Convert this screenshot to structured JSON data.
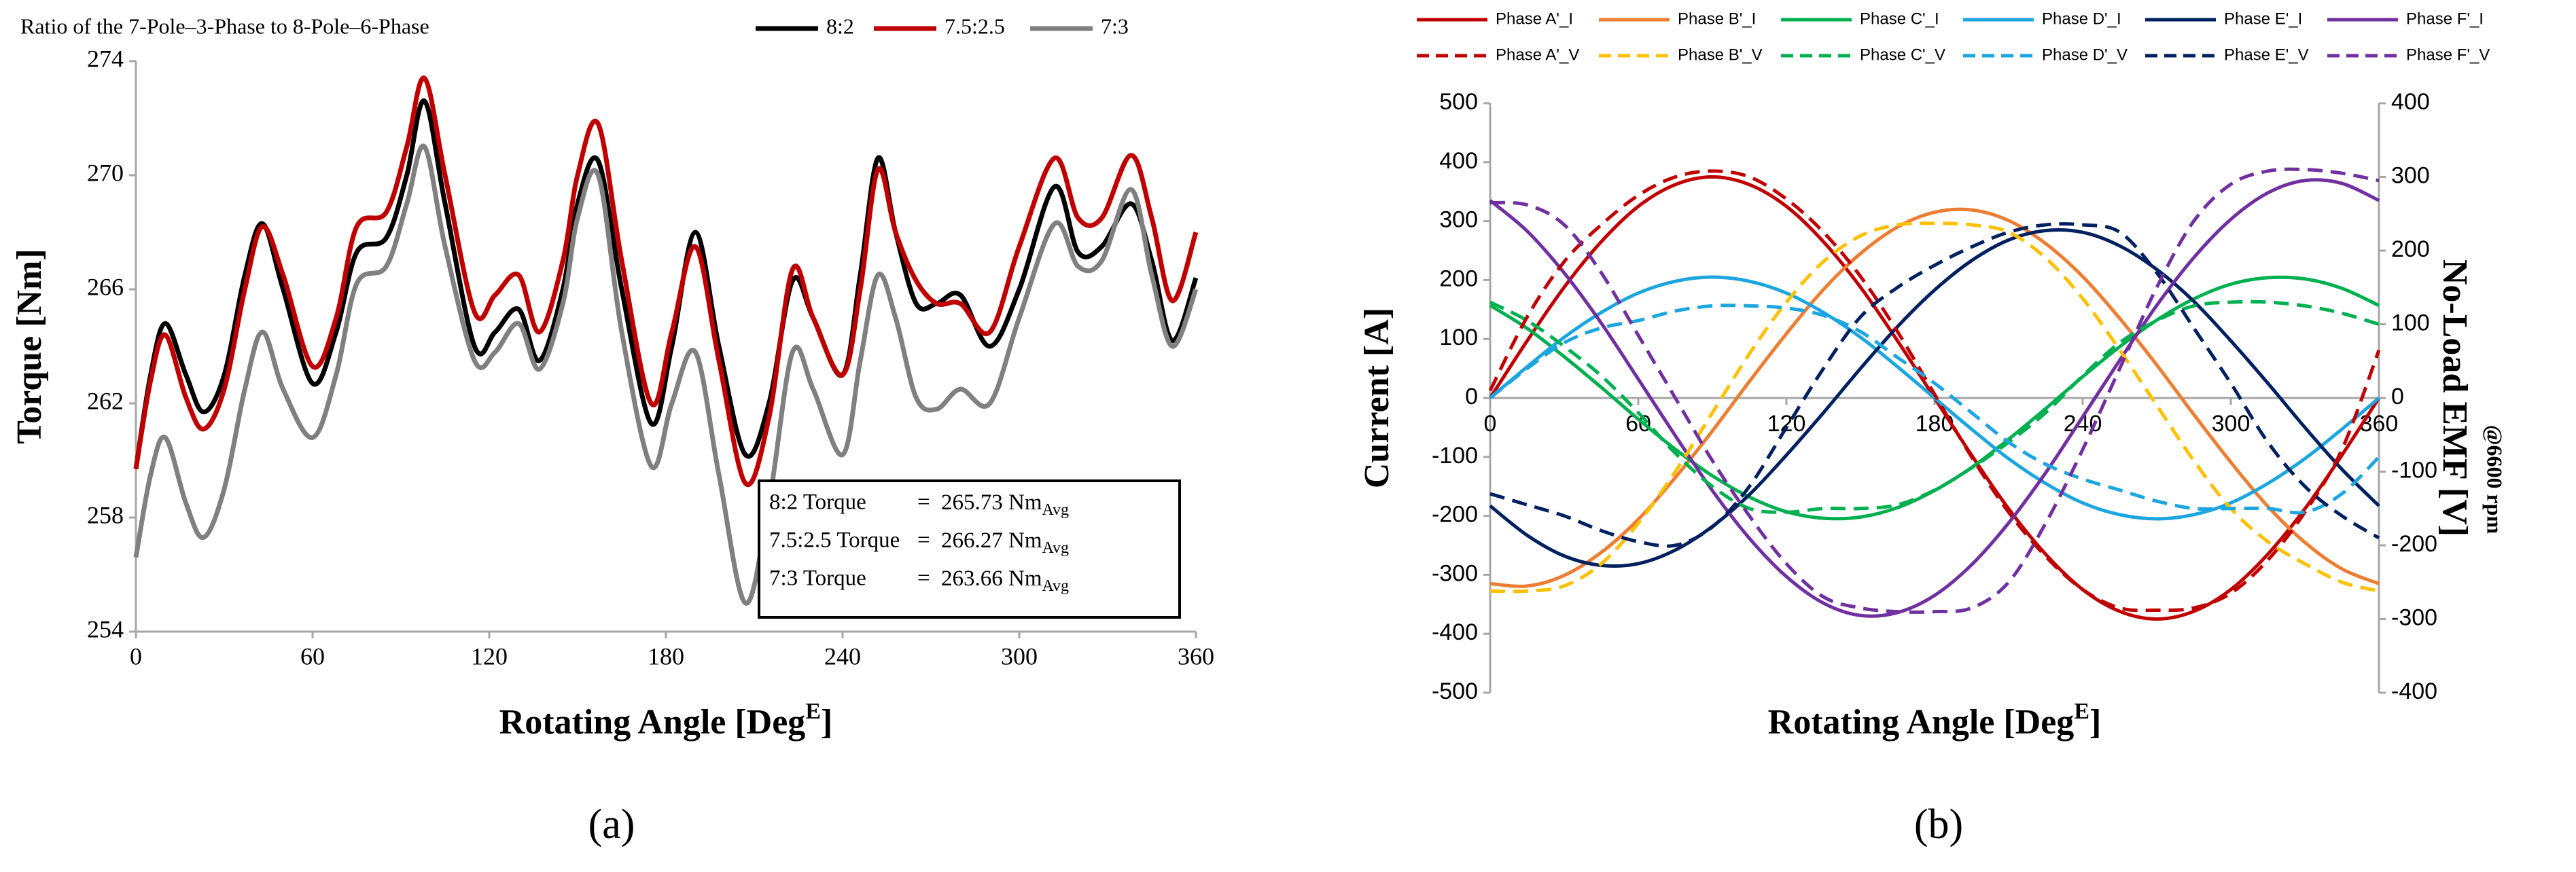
{
  "chart_data": [
    {
      "type": "line",
      "panel_label": "(a)",
      "title": "Ratio of the 7-Pole–3-Phase to 8-Pole–6-Phase",
      "ylabel": "Torque [Nm]",
      "xlabel_parts": [
        "Rotating Angle [Deg",
        "E",
        "]"
      ],
      "xlim": [
        0,
        360
      ],
      "xticks": [
        0,
        60,
        120,
        180,
        240,
        300,
        360
      ],
      "ylim": [
        254,
        274
      ],
      "yticks": [
        254,
        258,
        262,
        266,
        270,
        274
      ],
      "x": [
        0,
        5,
        10,
        17,
        23,
        30,
        37,
        43,
        50,
        60,
        68,
        75,
        85,
        92,
        98,
        105,
        115,
        122,
        130,
        137,
        145,
        150,
        157,
        165,
        175,
        182,
        190,
        198,
        207,
        215,
        223,
        230,
        240,
        246,
        252,
        258,
        265,
        272,
        280,
        290,
        300,
        312,
        320,
        328,
        338,
        345,
        352,
        360
      ],
      "series": [
        {
          "name": "8:2",
          "color": "#000000",
          "values": [
            259.7,
            263,
            264.8,
            263,
            261.7,
            263,
            266.5,
            268.3,
            266,
            262.7,
            264.5,
            267.3,
            267.8,
            270,
            272.6,
            269,
            264,
            264.5,
            265.3,
            263.5,
            266,
            269,
            270.5,
            266,
            261.3,
            264,
            268,
            264,
            260.2,
            262,
            266.3,
            265,
            263,
            266.5,
            270.6,
            268,
            265.5,
            265.5,
            265.8,
            264,
            266,
            269.6,
            267.3,
            267.5,
            269,
            267,
            264.2,
            266.4
          ]
        },
        {
          "name": "7.5:2.5",
          "color": "#c00000",
          "values": [
            259.7,
            262.8,
            264.4,
            262.2,
            261.1,
            262.5,
            266,
            268.2,
            266.5,
            263.3,
            265,
            268.2,
            268.7,
            271,
            273.4,
            270,
            265.2,
            265.8,
            266.5,
            264.5,
            267,
            270,
            271.8,
            267,
            262,
            264.5,
            267.5,
            263.5,
            259.2,
            261.5,
            266.7,
            265,
            263,
            266,
            270.2,
            268,
            266.3,
            265.5,
            265.5,
            264.5,
            267.5,
            270.6,
            268.5,
            268.5,
            270.7,
            268.5,
            265.6,
            268
          ]
        },
        {
          "name": "7:3",
          "color": "#808080",
          "values": [
            256.6,
            259.5,
            260.8,
            258.5,
            257.3,
            259,
            262.5,
            264.5,
            262.5,
            260.8,
            263,
            266.2,
            266.8,
            269,
            271,
            267.5,
            263.5,
            263.8,
            264.8,
            263.2,
            265.5,
            268.5,
            270,
            264.5,
            259.8,
            262,
            263.8,
            259.5,
            255,
            258.5,
            263.8,
            262.5,
            260.2,
            263.5,
            266.5,
            265,
            262.2,
            261.8,
            262.5,
            262,
            265,
            268.3,
            266.8,
            267,
            269.5,
            266.5,
            264,
            266
          ]
        }
      ],
      "annotations": [
        {
          "label": "8:2 Torque",
          "eq": "=",
          "value": "265.73 Nm",
          "sub": "Avg",
          "color": "#000000"
        },
        {
          "label": "7.5:2.5 Torque",
          "eq": "=",
          "value": "266.27 Nm",
          "sub": "Avg",
          "color": "#c00000"
        },
        {
          "label": "7:3 Torque",
          "eq": "=",
          "value": "263.66 Nm",
          "sub": "Avg",
          "color": "#000000"
        }
      ]
    },
    {
      "type": "line",
      "panel_label": "(b)",
      "ylabel": "Current [A]",
      "y2label": "No-Load EMF [V]",
      "y2sublabel": "@6600 rpm",
      "xlabel_parts": [
        "Rotating Angle [Deg",
        "E",
        "]"
      ],
      "xlim": [
        0,
        360
      ],
      "xticks": [
        0,
        60,
        120,
        180,
        240,
        300,
        360
      ],
      "ylim": [
        -500,
        500
      ],
      "yticks": [
        -500,
        -400,
        -300,
        -200,
        -100,
        0,
        100,
        200,
        300,
        400,
        500
      ],
      "y2lim": [
        -400,
        400
      ],
      "y2ticks": [
        -400,
        -300,
        -200,
        -100,
        0,
        100,
        200,
        300,
        400
      ],
      "x": [
        0,
        15,
        30,
        45,
        60,
        75,
        90,
        105,
        120,
        135,
        150,
        165,
        180,
        195,
        210,
        225,
        240,
        255,
        270,
        285,
        300,
        315,
        330,
        345,
        360
      ],
      "series": [
        {
          "name": "Phase A'_I",
          "color": "#c00000",
          "values": [
            0,
            97,
            188,
            265,
            325,
            362,
            375,
            362,
            325,
            265,
            188,
            97,
            0,
            -97,
            -188,
            -265,
            -325,
            -362,
            -375,
            -362,
            -325,
            -265,
            -188,
            -97,
            0
          ]
        },
        {
          "name": "Phase B'_I",
          "color": "#ed7d31",
          "values": [
            -315,
            -319,
            -301,
            -262,
            -206,
            -135,
            -56,
            28,
            109,
            184,
            245,
            290,
            315,
            319,
            301,
            262,
            206,
            135,
            56,
            -28,
            -109,
            -184,
            -245,
            -290,
            -315
          ]
        },
        {
          "name": "Phase C'_I",
          "color": "#00b050",
          "values": [
            157,
            118,
            70,
            18,
            -36,
            -87,
            -132,
            -168,
            -193,
            -204,
            -202,
            -186,
            -157,
            -118,
            -70,
            -18,
            36,
            87,
            132,
            168,
            193,
            204,
            202,
            186,
            157
          ]
        },
        {
          "name": "Phase D'_I",
          "color": "#1ca6e0",
          "values": [
            0,
            53,
            103,
            145,
            178,
            198,
            205,
            198,
            178,
            145,
            103,
            53,
            0,
            -53,
            -103,
            -145,
            -178,
            -198,
            -205,
            -198,
            -178,
            -145,
            -103,
            -53,
            0
          ]
        },
        {
          "name": "Phase E'_I",
          "color": "#002060",
          "values": [
            -183,
            -233,
            -268,
            -284,
            -281,
            -258,
            -218,
            -164,
            -97,
            -25,
            50,
            121,
            183,
            233,
            268,
            284,
            281,
            258,
            218,
            164,
            97,
            25,
            -50,
            -121,
            -183
          ]
        },
        {
          "name": "Phase F'_I",
          "color": "#7030a0",
          "values": [
            335,
            283,
            212,
            127,
            32,
            -64,
            -157,
            -238,
            -303,
            -348,
            -369,
            -364,
            -335,
            -283,
            -212,
            -127,
            -32,
            64,
            157,
            238,
            303,
            348,
            369,
            364,
            335
          ]
        },
        {
          "name": "Phase A'_V",
          "color": "#c00000",
          "dash": true,
          "axis": "y2",
          "values": [
            10,
            110,
            185,
            235,
            275,
            300,
            308,
            300,
            270,
            225,
            165,
            90,
            5,
            -80,
            -155,
            -215,
            -260,
            -285,
            -288,
            -285,
            -265,
            -220,
            -155,
            -70,
            65
          ]
        },
        {
          "name": "Phase B'_V",
          "color": "#ffc000",
          "dash": true,
          "axis": "y2",
          "values": [
            -262,
            -262,
            -255,
            -225,
            -170,
            -100,
            -20,
            60,
            130,
            185,
            220,
            235,
            237,
            235,
            225,
            190,
            135,
            65,
            -10,
            -85,
            -150,
            -195,
            -225,
            -250,
            -262
          ]
        },
        {
          "name": "Phase C'_V",
          "color": "#00b050",
          "dash": true,
          "axis": "y2",
          "values": [
            130,
            105,
            70,
            30,
            -20,
            -75,
            -120,
            -150,
            -155,
            -150,
            -150,
            -145,
            -125,
            -95,
            -60,
            -20,
            30,
            75,
            105,
            125,
            130,
            130,
            125,
            115,
            100
          ]
        },
        {
          "name": "Phase D'_V",
          "color": "#1ca6e0",
          "dash": true,
          "axis": "y2",
          "values": [
            0,
            40,
            75,
            95,
            105,
            118,
            125,
            125,
            122,
            112,
            90,
            55,
            20,
            -20,
            -60,
            -90,
            -110,
            -125,
            -140,
            -150,
            -150,
            -150,
            -155,
            -130,
            -80
          ]
        },
        {
          "name": "Phase E'_V",
          "color": "#002060",
          "dash": true,
          "axis": "y2",
          "values": [
            -130,
            -145,
            -160,
            -180,
            -195,
            -200,
            -175,
            -120,
            -40,
            40,
            110,
            150,
            180,
            205,
            225,
            235,
            235,
            225,
            170,
            95,
            20,
            -60,
            -120,
            -160,
            -190
          ]
        },
        {
          "name": "Phase F'_V",
          "color": "#7030a0",
          "dash": true,
          "axis": "y2",
          "values": [
            265,
            262,
            235,
            170,
            85,
            0,
            -85,
            -160,
            -225,
            -270,
            -285,
            -290,
            -290,
            -285,
            -250,
            -170,
            -70,
            40,
            150,
            240,
            290,
            308,
            310,
            305,
            295
          ]
        }
      ]
    }
  ]
}
